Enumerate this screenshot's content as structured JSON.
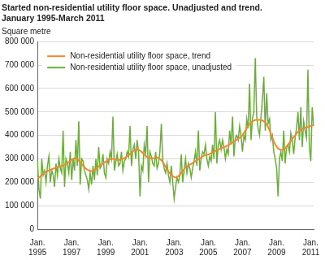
{
  "chart_data": {
    "type": "line",
    "title": [
      "Started non-residential utility floor space. Unadjusted and trend.",
      "January 1995-March 2011"
    ],
    "y_label": "Square metre",
    "categories": [
      "Jan. 1995",
      null,
      null,
      null,
      null,
      null,
      null,
      null,
      null,
      null,
      null,
      null,
      null,
      null,
      null,
      null,
      null,
      null,
      null,
      null,
      null,
      null,
      null,
      null,
      "Jan. 1997",
      null,
      null,
      null,
      null,
      null,
      null,
      null,
      null,
      null,
      null,
      null,
      null,
      null,
      null,
      null,
      null,
      null,
      null,
      null,
      null,
      null,
      null,
      null,
      "Jan. 1999",
      null,
      null,
      null,
      null,
      null,
      null,
      null,
      null,
      null,
      null,
      null,
      null,
      null,
      null,
      null,
      null,
      null,
      null,
      null,
      null,
      null,
      null,
      null,
      "Jan. 2001",
      null,
      null,
      null,
      null,
      null,
      null,
      null,
      null,
      null,
      null,
      null,
      null,
      null,
      null,
      null,
      null,
      null,
      null,
      null,
      null,
      null,
      null,
      null,
      "Jan. 2003",
      null,
      null,
      null,
      null,
      null,
      null,
      null,
      null,
      null,
      null,
      null,
      null,
      null,
      null,
      null,
      null,
      null,
      null,
      null,
      null,
      null,
      null,
      null,
      "Jan. 2005",
      null,
      null,
      null,
      null,
      null,
      null,
      null,
      null,
      null,
      null,
      null,
      null,
      null,
      null,
      null,
      null,
      null,
      null,
      null,
      null,
      null,
      null,
      null,
      "Jan. 2007",
      null,
      null,
      null,
      null,
      null,
      null,
      null,
      null,
      null,
      null,
      null,
      null,
      null,
      null,
      null,
      null,
      null,
      null,
      null,
      null,
      null,
      null,
      null,
      "Jan. 2009",
      null,
      null,
      null,
      null,
      null,
      null,
      null,
      null,
      null,
      null,
      null,
      null,
      null,
      null,
      null,
      null,
      null,
      null,
      null,
      null,
      null,
      null,
      null,
      "Jan. 2011",
      null,
      null
    ],
    "series": [
      {
        "name": "Non-residential utility floor space, trend",
        "color": "#f0892a",
        "values": [
          215000,
          220000,
          225000,
          230000,
          235000,
          240000,
          245000,
          248000,
          250000,
          252000,
          255000,
          258000,
          260000,
          262000,
          264000,
          266000,
          268000,
          270000,
          272000,
          275000,
          278000,
          282000,
          286000,
          290000,
          295000,
          300000,
          302000,
          302000,
          298000,
          292000,
          285000,
          278000,
          270000,
          263000,
          258000,
          254000,
          250000,
          248000,
          248000,
          250000,
          253000,
          257000,
          262000,
          267000,
          272000,
          276000,
          280000,
          284000,
          288000,
          292000,
          295000,
          298000,
          300000,
          300000,
          298000,
          296000,
          295000,
          295000,
          296000,
          298000,
          300000,
          303000,
          306000,
          310000,
          315000,
          320000,
          326000,
          332000,
          336000,
          338000,
          340000,
          338000,
          335000,
          330000,
          324000,
          318000,
          312000,
          308000,
          305000,
          303000,
          302000,
          302000,
          303000,
          305000,
          306000,
          304000,
          300000,
          294000,
          286000,
          276000,
          266000,
          256000,
          246000,
          238000,
          232000,
          226000,
          222000,
          220000,
          222000,
          226000,
          232000,
          240000,
          248000,
          256000,
          263000,
          268000,
          272000,
          275000,
          278000,
          282000,
          286000,
          290000,
          294000,
          298000,
          302000,
          306000,
          310000,
          313000,
          316000,
          318000,
          318000,
          321000,
          324000,
          327000,
          330000,
          333000,
          336000,
          339000,
          342000,
          345000,
          347000,
          350000,
          352000,
          355000,
          358000,
          362000,
          366000,
          370000,
          374000,
          378000,
          382000,
          386000,
          390000,
          395000,
          400000,
          410000,
          420000,
          430000,
          440000,
          448000,
          455000,
          460000,
          463000,
          465000,
          466000,
          466000,
          466000,
          465000,
          463000,
          460000,
          455000,
          447000,
          436000,
          422000,
          406000,
          390000,
          375000,
          362000,
          352000,
          344000,
          340000,
          338000,
          338000,
          340000,
          345000,
          352000,
          360000,
          368000,
          376000,
          384000,
          392000,
          400000,
          408000,
          415000,
          420000,
          424000,
          428000,
          430000,
          432000,
          434000,
          436000,
          438000,
          440000,
          442000,
          444000
        ]
      },
      {
        "name": "Non-residential utility floor space, unadjusted",
        "color": "#6aaf35",
        "values": [
          290000,
          170000,
          130000,
          300000,
          230000,
          250000,
          200000,
          270000,
          310000,
          200000,
          250000,
          230000,
          180000,
          280000,
          230000,
          300000,
          260000,
          240000,
          420000,
          180000,
          300000,
          280000,
          240000,
          330000,
          210000,
          300000,
          250000,
          380000,
          270000,
          460000,
          190000,
          300000,
          290000,
          250000,
          230000,
          210000,
          170000,
          240000,
          190000,
          270000,
          210000,
          300000,
          230000,
          350000,
          260000,
          270000,
          320000,
          240000,
          220000,
          300000,
          280000,
          330000,
          300000,
          480000,
          250000,
          290000,
          320000,
          270000,
          280000,
          330000,
          250000,
          290000,
          300000,
          330000,
          310000,
          440000,
          270000,
          340000,
          360000,
          300000,
          380000,
          330000,
          140000,
          270000,
          250000,
          360000,
          320000,
          440000,
          200000,
          330000,
          310000,
          280000,
          270000,
          330000,
          260000,
          280000,
          330000,
          450000,
          290000,
          260000,
          240000,
          280000,
          230000,
          200000,
          270000,
          200000,
          130000,
          180000,
          220000,
          200000,
          230000,
          320000,
          200000,
          250000,
          300000,
          240000,
          280000,
          260000,
          220000,
          260000,
          290000,
          330000,
          270000,
          420000,
          250000,
          300000,
          330000,
          320000,
          360000,
          300000,
          270000,
          310000,
          290000,
          360000,
          300000,
          500000,
          280000,
          360000,
          380000,
          340000,
          380000,
          350000,
          300000,
          340000,
          320000,
          420000,
          360000,
          480000,
          310000,
          390000,
          400000,
          380000,
          440000,
          400000,
          330000,
          400000,
          380000,
          470000,
          430000,
          620000,
          380000,
          470000,
          500000,
          730000,
          480000,
          430000,
          400000,
          480000,
          550000,
          650000,
          420000,
          580000,
          450000,
          470000,
          380000,
          400000,
          330000,
          300000,
          260000,
          140000,
          300000,
          330000,
          290000,
          420000,
          280000,
          350000,
          360000,
          330000,
          410000,
          380000,
          320000,
          390000,
          430000,
          500000,
          380000,
          520000,
          350000,
          460000,
          420000,
          390000,
          680000,
          350000,
          290000,
          520000,
          440000
        ]
      }
    ],
    "ylim": [
      0,
      800000
    ],
    "yticks": [
      0,
      {
        "value": 100000,
        "label": "100 000"
      },
      {
        "value": 200000,
        "label": "200 000"
      },
      {
        "value": 300000,
        "label": "300 000"
      },
      {
        "value": 400000,
        "label": "400 000"
      },
      {
        "value": 500000,
        "label": "500 000"
      },
      {
        "value": 600000,
        "label": "600 000"
      },
      {
        "value": 700000,
        "label": "700 000"
      },
      {
        "value": 800000,
        "label": "800 000"
      }
    ],
    "grid": true,
    "legend": "upper left"
  }
}
